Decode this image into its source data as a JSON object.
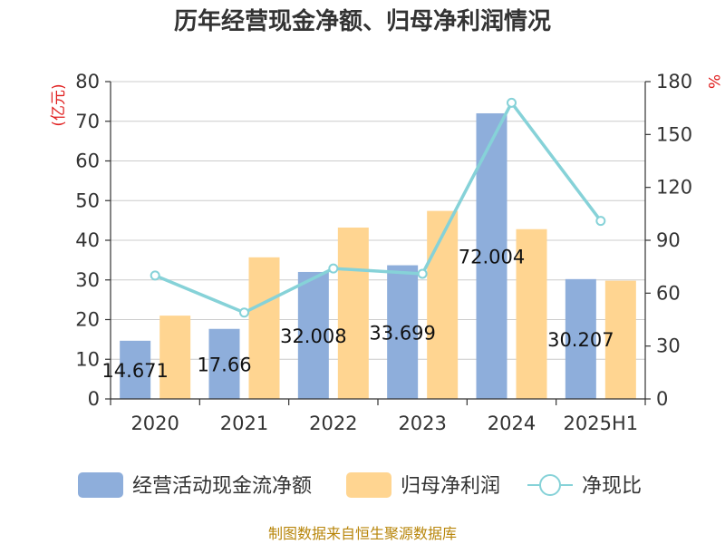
{
  "title": "历年经营现金净额、归母净利润情况",
  "source": "制图数据来自恒生聚源数据库",
  "chart_data": {
    "type": "bar",
    "categories": [
      "2020",
      "2021",
      "2022",
      "2023",
      "2024",
      "2025H1"
    ],
    "series": [
      {
        "name": "经营活动现金流净额",
        "type": "bar",
        "axis": "left",
        "color": "#8eaedb",
        "values": [
          14.671,
          17.66,
          32.008,
          33.699,
          72.004,
          30.207
        ],
        "labels": [
          "14.671",
          "17.66",
          "32.008",
          "33.699",
          "72.004",
          "30.207"
        ]
      },
      {
        "name": "归母净利润",
        "type": "bar",
        "axis": "left",
        "color": "#ffd591",
        "values": [
          21,
          35.7,
          43.2,
          47.4,
          42.8,
          29.8
        ]
      },
      {
        "name": "净现比",
        "type": "line",
        "axis": "right",
        "color": "#86d2d8",
        "values": [
          70,
          49,
          74,
          71,
          168,
          101
        ]
      }
    ],
    "y_left": {
      "label": "(亿元)",
      "min": 0,
      "max": 80,
      "ticks": [
        0,
        10,
        20,
        30,
        40,
        50,
        60,
        70,
        80
      ]
    },
    "y_right": {
      "label": "%",
      "min": 0,
      "max": 180,
      "ticks": [
        0,
        30,
        60,
        90,
        120,
        150,
        180
      ]
    },
    "grid": true,
    "legend_position": "bottom"
  }
}
